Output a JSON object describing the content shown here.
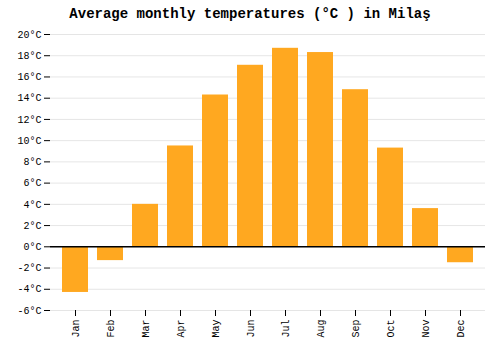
{
  "chart_data": {
    "type": "bar",
    "title": "Average monthly temperatures (°C ) in Milaş",
    "categories": [
      "Jan",
      "Feb",
      "Mar",
      "Apr",
      "May",
      "Jun",
      "Jul",
      "Aug",
      "Sep",
      "Oct",
      "Nov",
      "Dec"
    ],
    "values": [
      -4.3,
      -1.3,
      4.0,
      9.5,
      14.3,
      17.1,
      18.7,
      18.3,
      14.8,
      9.3,
      3.6,
      -1.5
    ],
    "color": "#FFA820",
    "ylim": [
      -6,
      20
    ],
    "yticks": [
      {
        "value": -6,
        "label": "-6°C"
      },
      {
        "value": -4,
        "label": "-4°C"
      },
      {
        "value": -2,
        "label": "-2°C"
      },
      {
        "value": 0,
        "label": "0°C"
      },
      {
        "value": 2,
        "label": "2°C"
      },
      {
        "value": 4,
        "label": "4°C"
      },
      {
        "value": 6,
        "label": "6°C"
      },
      {
        "value": 8,
        "label": "8°C"
      },
      {
        "value": 10,
        "label": "10°C"
      },
      {
        "value": 12,
        "label": "12°C"
      },
      {
        "value": 14,
        "label": "14°C"
      },
      {
        "value": 16,
        "label": "16°C"
      },
      {
        "value": 18,
        "label": "18°C"
      },
      {
        "value": 20,
        "label": "20°C"
      }
    ],
    "grid": true
  }
}
